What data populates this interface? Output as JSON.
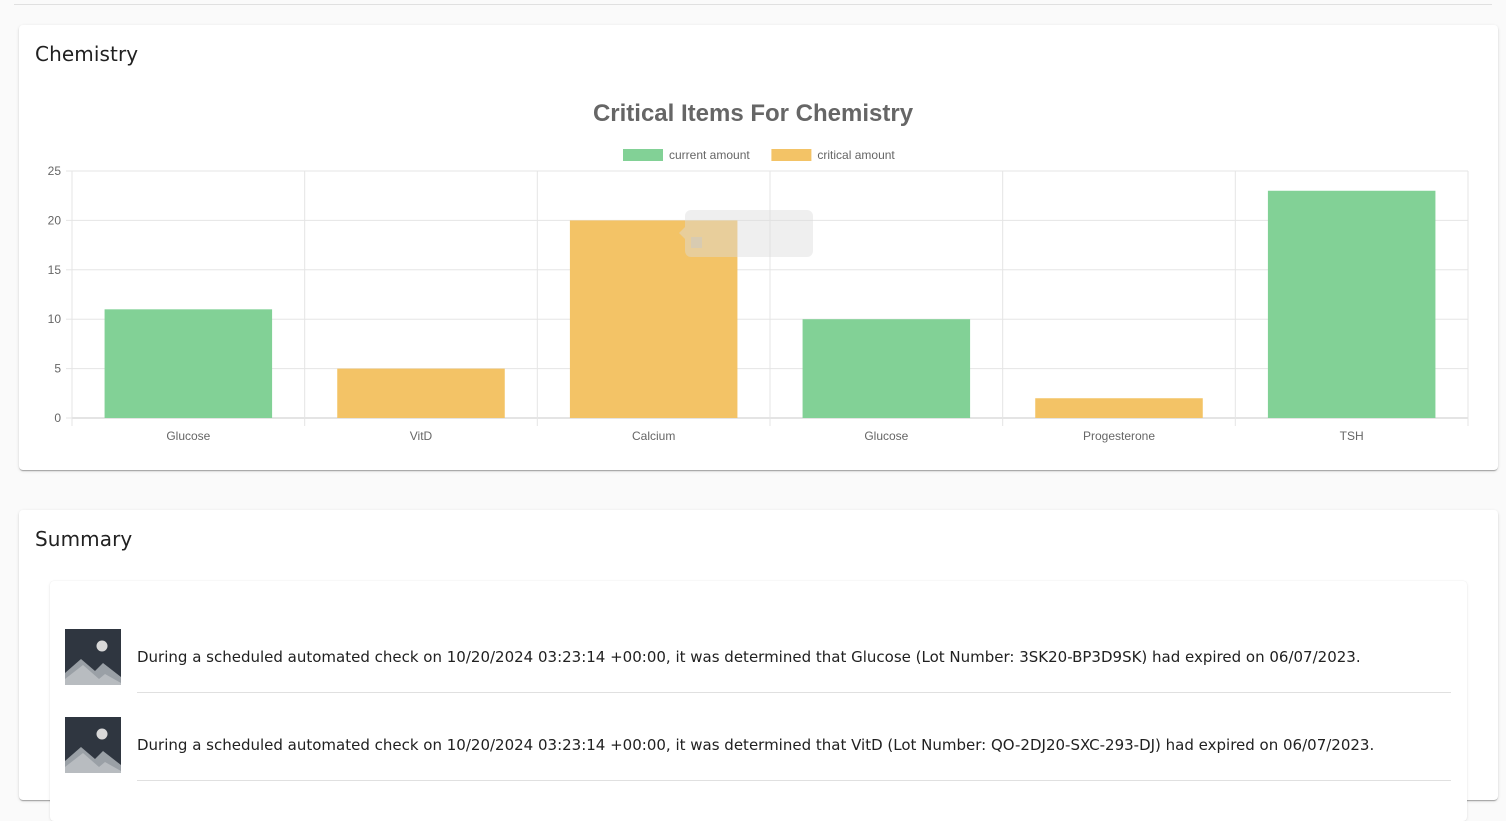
{
  "chemistry_card": {
    "title": "Chemistry"
  },
  "chart_data": {
    "type": "bar",
    "title": "Critical Items For Chemistry",
    "categories": [
      "Glucose",
      "VitD",
      "Calcium",
      "Glucose",
      "Progesterone",
      "TSH"
    ],
    "series": [
      {
        "name": "current amount",
        "color": "#82d196"
      },
      {
        "name": "critical amount",
        "color": "#f3c366"
      }
    ],
    "bars": [
      {
        "value": 11,
        "series": 0
      },
      {
        "value": 5,
        "series": 1
      },
      {
        "value": 20,
        "series": 1
      },
      {
        "value": 10,
        "series": 0
      },
      {
        "value": 2,
        "series": 1
      },
      {
        "value": 23,
        "series": 0
      }
    ],
    "ylim": [
      0,
      25
    ],
    "yticks": [
      "0",
      "5",
      "10",
      "15",
      "20",
      "25"
    ],
    "grid": true,
    "legend": "top-center"
  },
  "summary_card": {
    "title": "Summary",
    "entries": [
      {
        "text": "During a scheduled automated check on 10/20/2024 03:23:14 +00:00, it was determined that Glucose (Lot Number: 3SK20-BP3D9SK) had expired on 06/07/2023.",
        "icon": "image-placeholder-icon"
      },
      {
        "text": "During a scheduled automated check on 10/20/2024 03:23:14 +00:00, it was determined that VitD (Lot Number: QO-2DJ20-SXC-293-DJ) had expired on 06/07/2023.",
        "icon": "image-placeholder-icon"
      }
    ]
  },
  "colors": {
    "current": "#82d196",
    "critical": "#f3c366",
    "grid": "#e5e5e5"
  }
}
